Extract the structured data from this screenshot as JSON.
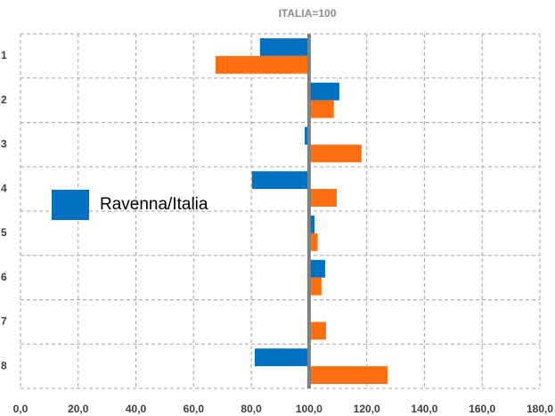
{
  "chart_data": {
    "type": "hbar",
    "title": "ITALIA=100",
    "categories": [
      "1",
      "2",
      "3",
      "4",
      "5",
      "6",
      "7",
      "8"
    ],
    "baseline": 100,
    "series": [
      {
        "name": "Ravenna/Italia",
        "color": "#0070c0",
        "values": [
          83,
          110.5,
          98.5,
          80.2,
          101.9,
          105.6,
          100,
          81.2
        ]
      },
      {
        "color": "#ff6f0f",
        "values": [
          67.6,
          108.6,
          118.2,
          109.6,
          103,
          104.3,
          105.9,
          127.2
        ]
      }
    ],
    "xlim": [
      0,
      180
    ],
    "xticks": [
      {
        "value": 0,
        "label": "0,0"
      },
      {
        "value": 20,
        "label": "20,0"
      },
      {
        "value": 40,
        "label": "40,0"
      },
      {
        "value": 60,
        "label": "60,0"
      },
      {
        "value": 80,
        "label": "80,0"
      },
      {
        "value": 100,
        "label": "100,0"
      },
      {
        "value": 120,
        "label": "120,0"
      },
      {
        "value": 140,
        "label": "140,0"
      },
      {
        "value": 160,
        "label": "160,0"
      },
      {
        "value": 180,
        "label": "180,0"
      }
    ],
    "grid": true
  }
}
